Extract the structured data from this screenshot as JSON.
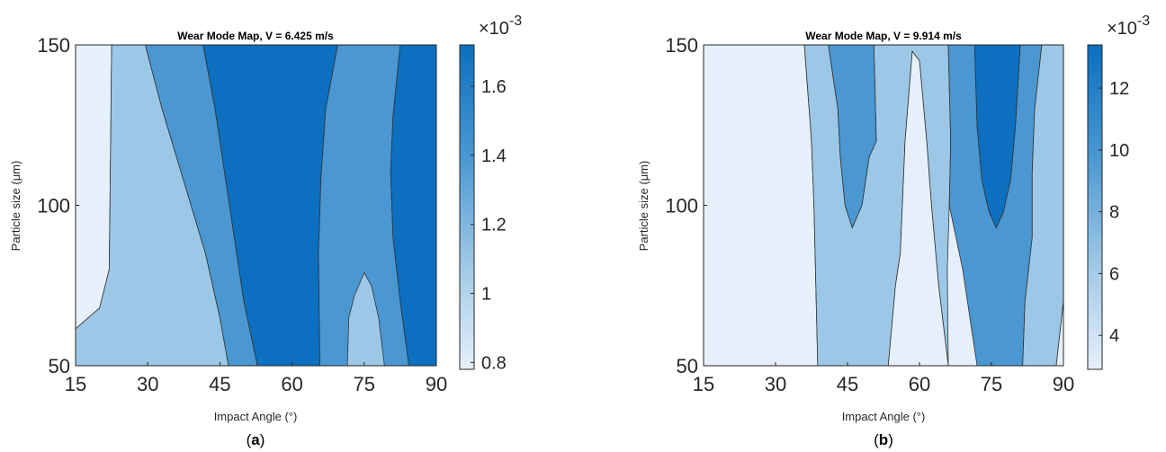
{
  "colors": {
    "level_1": "#e6f0fa",
    "level_2": "#9dc7e6",
    "level_3": "#4a97d1",
    "level_4": "#0c6fbf",
    "contour_line": "#333333",
    "axis": "#262626"
  },
  "chart_data": [
    {
      "type": "contour",
      "panel_label": "a",
      "title": "Wear Mode Map, V = 6.425 m/s",
      "xlabel": "Impact Angle (°)",
      "ylabel": "Particle size (μm)",
      "xlim": [
        15,
        90
      ],
      "ylim": [
        50,
        150
      ],
      "xticks": [
        15,
        30,
        45,
        60,
        75,
        90
      ],
      "yticks": [
        50,
        100,
        150
      ],
      "colorbar": {
        "range": [
          0.78,
          1.72
        ],
        "ticks": [
          0.8,
          1,
          1.2,
          1.4,
          1.6
        ],
        "tick_labels": [
          "0.8",
          "1",
          "1.2",
          "1.4",
          "1.6"
        ],
        "exponent_label": "×10",
        "exponent": "-3"
      },
      "regions": [
        {
          "level": 1,
          "polygon": [
            [
              15,
              150
            ],
            [
              22.5,
              150
            ],
            [
              22.3,
              120
            ],
            [
              22,
              80
            ],
            [
              20,
              68
            ],
            [
              15,
              61.5
            ]
          ]
        },
        {
          "level": 2,
          "polygon": [
            [
              15,
              61.5
            ],
            [
              20,
              68
            ],
            [
              22,
              80
            ],
            [
              22.3,
              120
            ],
            [
              22.5,
              150
            ],
            [
              29.5,
              150
            ],
            [
              33,
              130
            ],
            [
              38,
              105
            ],
            [
              42,
              85
            ],
            [
              45,
              65
            ],
            [
              46.8,
              50
            ],
            [
              15,
              50
            ]
          ]
        },
        {
          "level": 3,
          "polygon": [
            [
              29.5,
              150
            ],
            [
              41.5,
              150
            ],
            [
              44,
              130
            ],
            [
              47,
              100
            ],
            [
              50,
              70
            ],
            [
              52.8,
              50
            ],
            [
              46.8,
              50
            ],
            [
              45,
              65
            ],
            [
              42,
              85
            ],
            [
              38,
              105
            ],
            [
              33,
              130
            ]
          ]
        },
        {
          "level": 4,
          "polygon": [
            [
              41.5,
              150
            ],
            [
              69.5,
              150
            ],
            [
              67,
              130
            ],
            [
              66,
              108
            ],
            [
              65.5,
              85
            ],
            [
              65.8,
              50
            ],
            [
              52.8,
              50
            ],
            [
              50,
              70
            ],
            [
              47,
              100
            ],
            [
              44,
              130
            ]
          ]
        },
        {
          "level": 3,
          "polygon": [
            [
              69.5,
              150
            ],
            [
              82.5,
              150
            ],
            [
              81,
              128
            ],
            [
              80.5,
              110
            ],
            [
              81,
              90
            ],
            [
              82.5,
              70
            ],
            [
              84.3,
              50
            ],
            [
              65.8,
              50
            ],
            [
              65.5,
              85
            ],
            [
              66,
              108
            ],
            [
              67,
              130
            ]
          ]
        },
        {
          "level": 2,
          "polygon": [
            [
              71.5,
              50
            ],
            [
              71.8,
              65
            ],
            [
              73,
              72
            ],
            [
              75,
              79
            ],
            [
              76.5,
              75
            ],
            [
              78,
              65
            ],
            [
              79.2,
              50
            ]
          ]
        },
        {
          "level": 4,
          "polygon": [
            [
              82.5,
              150
            ],
            [
              90,
              150
            ],
            [
              90,
              50
            ],
            [
              84.3,
              50
            ],
            [
              82.5,
              70
            ],
            [
              81,
              90
            ],
            [
              80.5,
              110
            ],
            [
              81,
              128
            ]
          ]
        }
      ]
    },
    {
      "type": "contour",
      "panel_label": "b",
      "title": "Wear Mode Map, V = 9.914 m/s",
      "xlabel": "Impact Angle (°)",
      "ylabel": "Particle size (μm)",
      "xlim": [
        15,
        90
      ],
      "ylim": [
        50,
        150
      ],
      "xticks": [
        15,
        30,
        45,
        60,
        75,
        90
      ],
      "yticks": [
        50,
        100,
        150
      ],
      "colorbar": {
        "range": [
          2.9,
          13.4
        ],
        "ticks": [
          4,
          6,
          8,
          10,
          12
        ],
        "tick_labels": [
          "4",
          "6",
          "8",
          "10",
          "12"
        ],
        "exponent_label": "×10",
        "exponent": "-3"
      },
      "regions": [
        {
          "level": 1,
          "polygon": [
            [
              15,
              150
            ],
            [
              36,
              150
            ],
            [
              37.5,
              120
            ],
            [
              38,
              100
            ],
            [
              38.8,
              50
            ],
            [
              15,
              50
            ]
          ]
        },
        {
          "level": 2,
          "polygon": [
            [
              36,
              150
            ],
            [
              41,
              150
            ],
            [
              43,
              130
            ],
            [
              43.5,
              115
            ],
            [
              44.5,
              100
            ],
            [
              46,
              93
            ],
            [
              48,
              100
            ],
            [
              49.5,
              115
            ],
            [
              51,
              120
            ],
            [
              50.5,
              150
            ],
            [
              66,
              150
            ],
            [
              66.5,
              120
            ],
            [
              66.2,
              100
            ],
            [
              65.8,
              80
            ],
            [
              66,
              50
            ],
            [
              53.5,
              50
            ],
            [
              55,
              75
            ],
            [
              56,
              85
            ],
            [
              57,
              120
            ],
            [
              58.5,
              148
            ],
            [
              60,
              145
            ],
            [
              61.5,
              120
            ],
            [
              62.5,
              100
            ],
            [
              64,
              75
            ],
            [
              66,
              50
            ],
            [
              38.8,
              50
            ],
            [
              38,
              100
            ],
            [
              37.5,
              120
            ]
          ]
        },
        {
          "level": 1,
          "polygon": [
            [
              53.5,
              50
            ],
            [
              66,
              50
            ],
            [
              64,
              75
            ],
            [
              62.5,
              100
            ],
            [
              61.5,
              120
            ],
            [
              60,
              145
            ],
            [
              58.5,
              148
            ],
            [
              57,
              120
            ],
            [
              56,
              85
            ],
            [
              55,
              75
            ]
          ]
        },
        {
          "level": 3,
          "polygon": [
            [
              41,
              150
            ],
            [
              50.5,
              150
            ],
            [
              51,
              120
            ],
            [
              49.5,
              115
            ],
            [
              48,
              100
            ],
            [
              46,
              93
            ],
            [
              44.5,
              100
            ],
            [
              43.5,
              115
            ],
            [
              43,
              130
            ]
          ]
        },
        {
          "level": 3,
          "polygon": [
            [
              66,
              150
            ],
            [
              71.5,
              150
            ],
            [
              72,
              125
            ],
            [
              73,
              108
            ],
            [
              74.5,
              98
            ],
            [
              76,
              93
            ],
            [
              77.5,
              98
            ],
            [
              79,
              108
            ],
            [
              80,
              125
            ],
            [
              81,
              150
            ],
            [
              85.5,
              150
            ],
            [
              84,
              130
            ],
            [
              83.5,
              110
            ],
            [
              83.5,
              90
            ],
            [
              82,
              70
            ],
            [
              81.5,
              50
            ],
            [
              72,
              50
            ],
            [
              69,
              80
            ],
            [
              66.2,
              100
            ],
            [
              66.5,
              120
            ]
          ]
        },
        {
          "level": 4,
          "polygon": [
            [
              71.5,
              150
            ],
            [
              81,
              150
            ],
            [
              80,
              125
            ],
            [
              79,
              108
            ],
            [
              77.5,
              98
            ],
            [
              76,
              93
            ],
            [
              74.5,
              98
            ],
            [
              73,
              108
            ],
            [
              72,
              125
            ]
          ]
        },
        {
          "level": 2,
          "polygon": [
            [
              85.5,
              150
            ],
            [
              90,
              150
            ],
            [
              90,
              70
            ],
            [
              88.5,
              50
            ],
            [
              81.5,
              50
            ],
            [
              82,
              70
            ],
            [
              83.5,
              90
            ],
            [
              83.5,
              110
            ],
            [
              84,
              130
            ]
          ]
        },
        {
          "level": 1,
          "polygon": [
            [
              88.5,
              50
            ],
            [
              90,
              50
            ],
            [
              90,
              70
            ]
          ]
        }
      ]
    }
  ]
}
